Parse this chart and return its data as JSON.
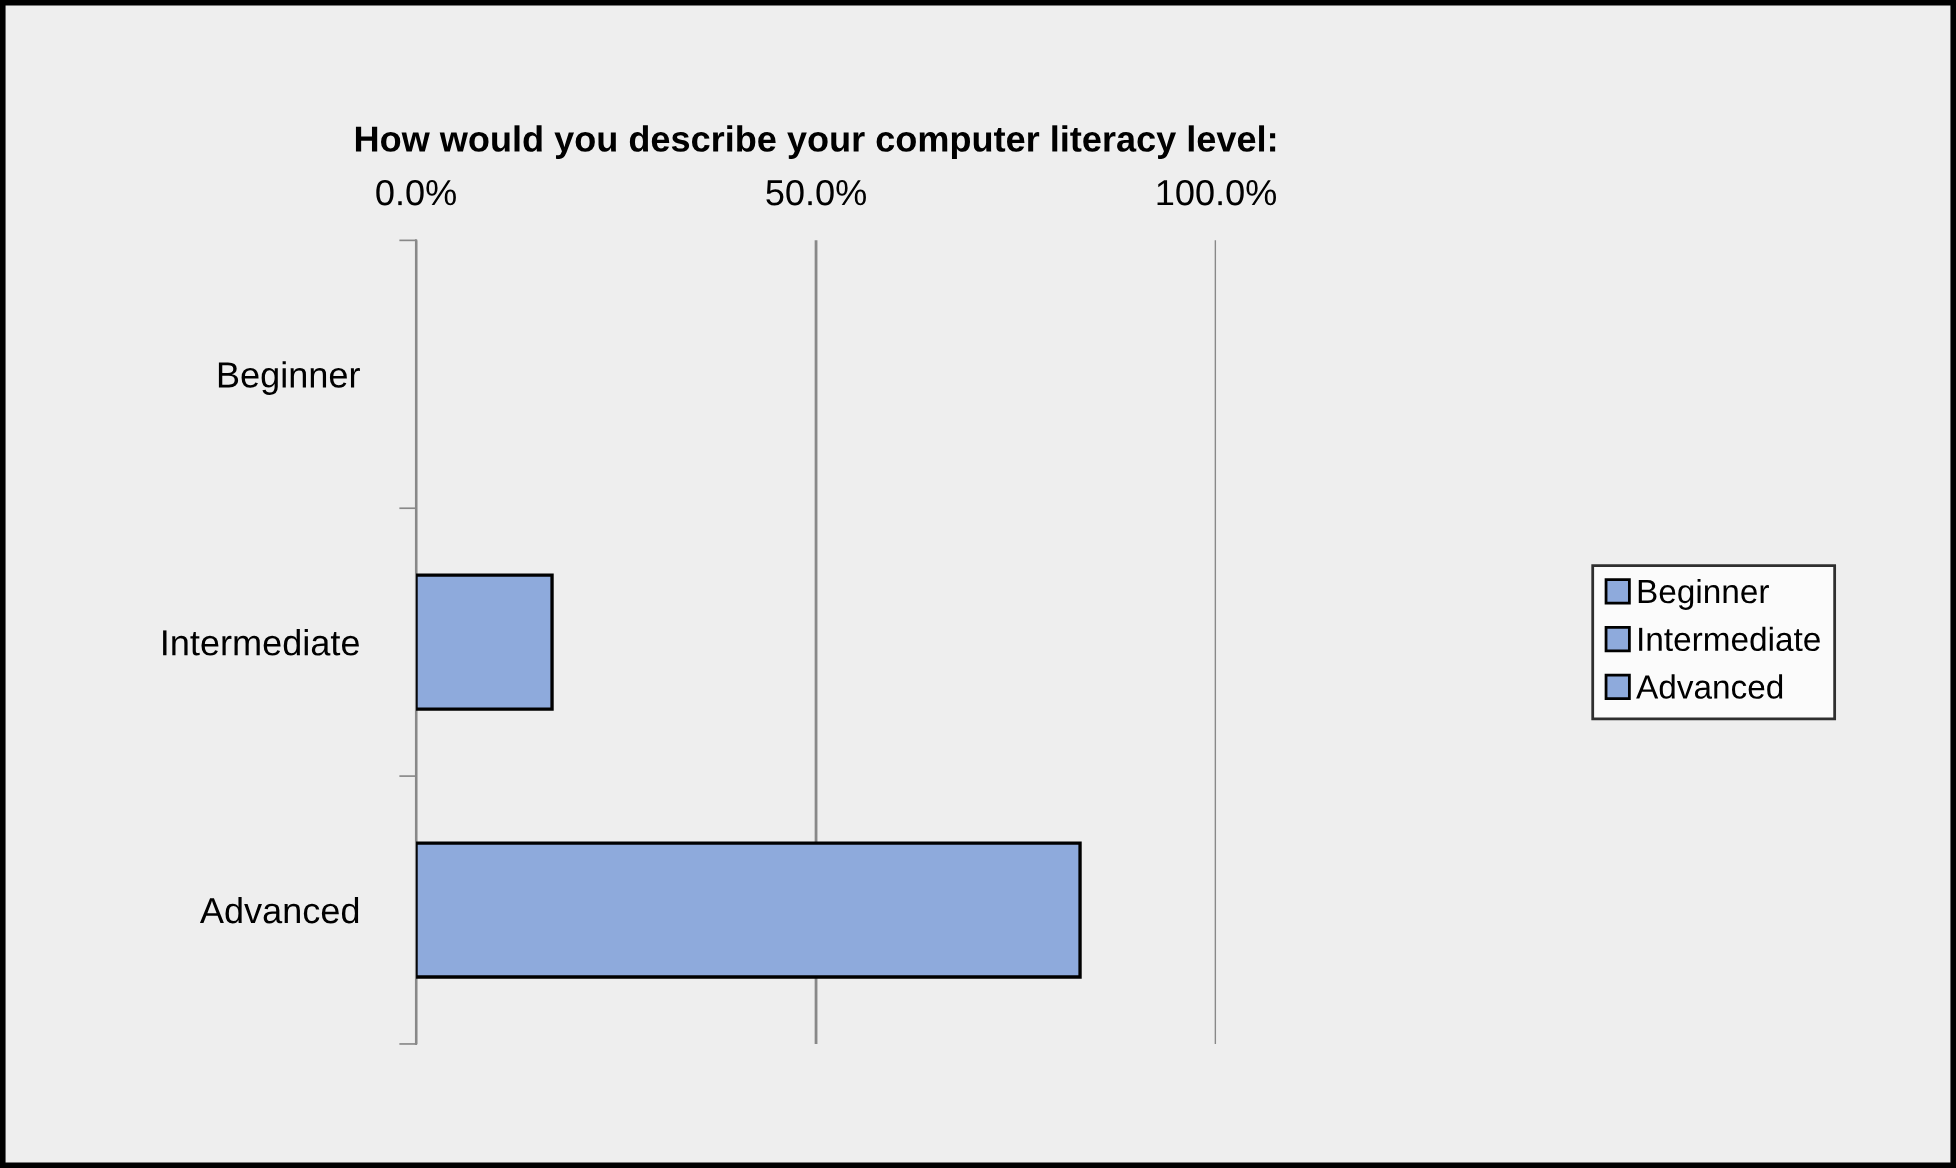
{
  "chart_data": {
    "type": "bar",
    "orientation": "horizontal",
    "title": "How would you describe your computer literacy level:",
    "categories": [
      "Beginner",
      "Intermediate",
      "Advanced"
    ],
    "stacked": true,
    "series": [
      {
        "name": "Beginner",
        "color": "#8eaadc",
        "values": [
          0,
          null,
          null
        ]
      },
      {
        "name": "Intermediate",
        "color": "#8eaadc",
        "values": [
          null,
          17,
          null
        ]
      },
      {
        "name": "Advanced",
        "color": "#8eaadc",
        "values": [
          null,
          null,
          83
        ]
      }
    ],
    "xlim": [
      0,
      100
    ],
    "xticks": [
      {
        "value": 0,
        "label": "0.0%"
      },
      {
        "value": 50,
        "label": "50.0%"
      },
      {
        "value": 100,
        "label": "100.0%"
      }
    ],
    "grid": "x",
    "legend": "right"
  }
}
